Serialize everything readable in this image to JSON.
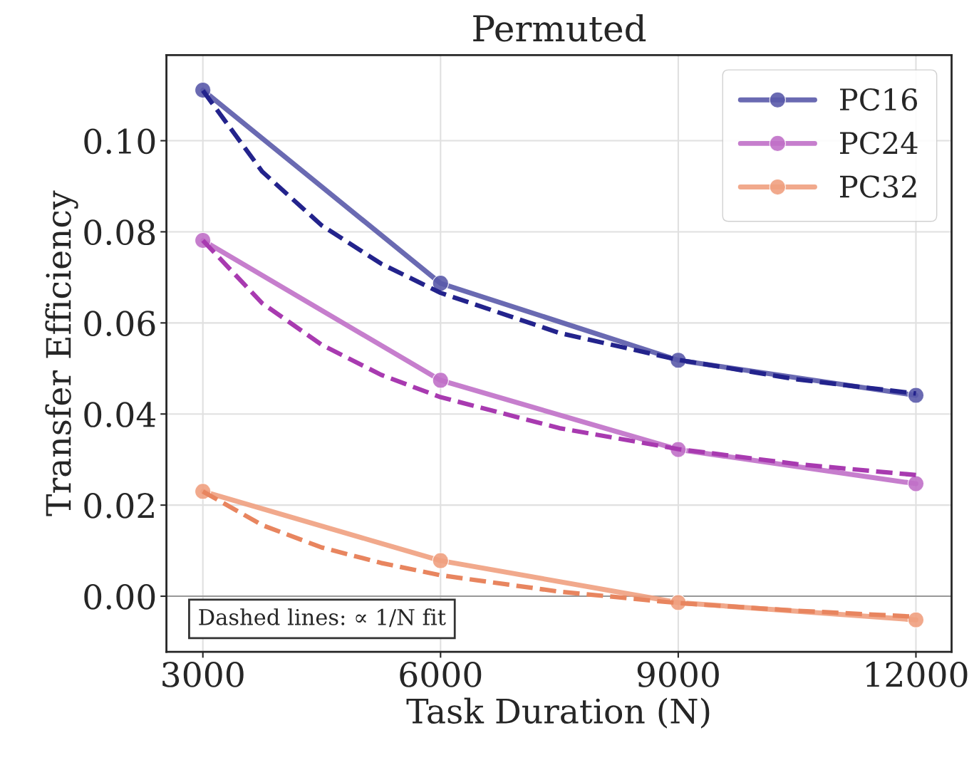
{
  "chart_data": {
    "type": "line",
    "title": "Permuted",
    "xlabel": "Task Duration (N)",
    "ylabel": "Transfer Efficiency",
    "x": [
      3000,
      6000,
      9000,
      12000
    ],
    "series": [
      {
        "name": "PC16",
        "color": "#5a5aaa",
        "values": [
          0.1111,
          0.0687,
          0.0518,
          0.0441
        ],
        "marker": "circle",
        "line_style": "solid"
      },
      {
        "name": "PC24",
        "color": "#c070c8",
        "values": [
          0.0781,
          0.0474,
          0.0322,
          0.0247
        ],
        "marker": "circle",
        "line_style": "solid"
      },
      {
        "name": "PC32",
        "color": "#f0a080",
        "values": [
          0.023,
          0.0078,
          -0.0014,
          -0.0052
        ],
        "marker": "circle",
        "line_style": "solid"
      },
      {
        "color": "#23238c",
        "x": [
          3000,
          3750,
          4500,
          5250,
          6000,
          7500,
          9000,
          10500,
          12000
        ],
        "values": [
          0.111,
          0.0932,
          0.0814,
          0.073,
          0.0666,
          0.0578,
          0.0519,
          0.0476,
          0.0445
        ],
        "marker": "none",
        "line_style": "dashed"
      },
      {
        "color": "#a83ab0",
        "x": [
          3000,
          3750,
          4500,
          5250,
          6000,
          7500,
          9000,
          10500,
          12000
        ],
        "values": [
          0.0781,
          0.0643,
          0.0552,
          0.0486,
          0.0437,
          0.0369,
          0.0323,
          0.029,
          0.0266
        ],
        "marker": "none",
        "line_style": "dashed"
      },
      {
        "color": "#e8855f",
        "x": [
          3000,
          3750,
          4500,
          5250,
          6000,
          7500,
          9000,
          10500,
          12000
        ],
        "values": [
          0.023,
          0.0156,
          0.0107,
          0.0073,
          0.0046,
          0.001,
          -0.0015,
          -0.0032,
          -0.0045
        ],
        "marker": "none",
        "line_style": "dashed"
      }
    ],
    "xlim": [
      2540,
      12450
    ],
    "xticks": [
      3000,
      6000,
      9000,
      12000
    ],
    "ylim": [
      -0.0122,
      0.1188
    ],
    "yticks": [
      {
        "value": 0,
        "label": "0.00"
      },
      {
        "value": 0.02,
        "label": "0.02"
      },
      {
        "value": 0.04,
        "label": "0.04"
      },
      {
        "value": 0.06,
        "label": "0.06"
      },
      {
        "value": 0.08,
        "label": "0.08"
      },
      {
        "value": 0.1,
        "label": "0.10"
      }
    ],
    "ref_lines": [
      {
        "axis": "y",
        "value": 0,
        "color": "#808080"
      }
    ],
    "annotations": [
      "Dashed lines: ∝ 1/N fit"
    ],
    "grid": true,
    "legend": "top right"
  }
}
